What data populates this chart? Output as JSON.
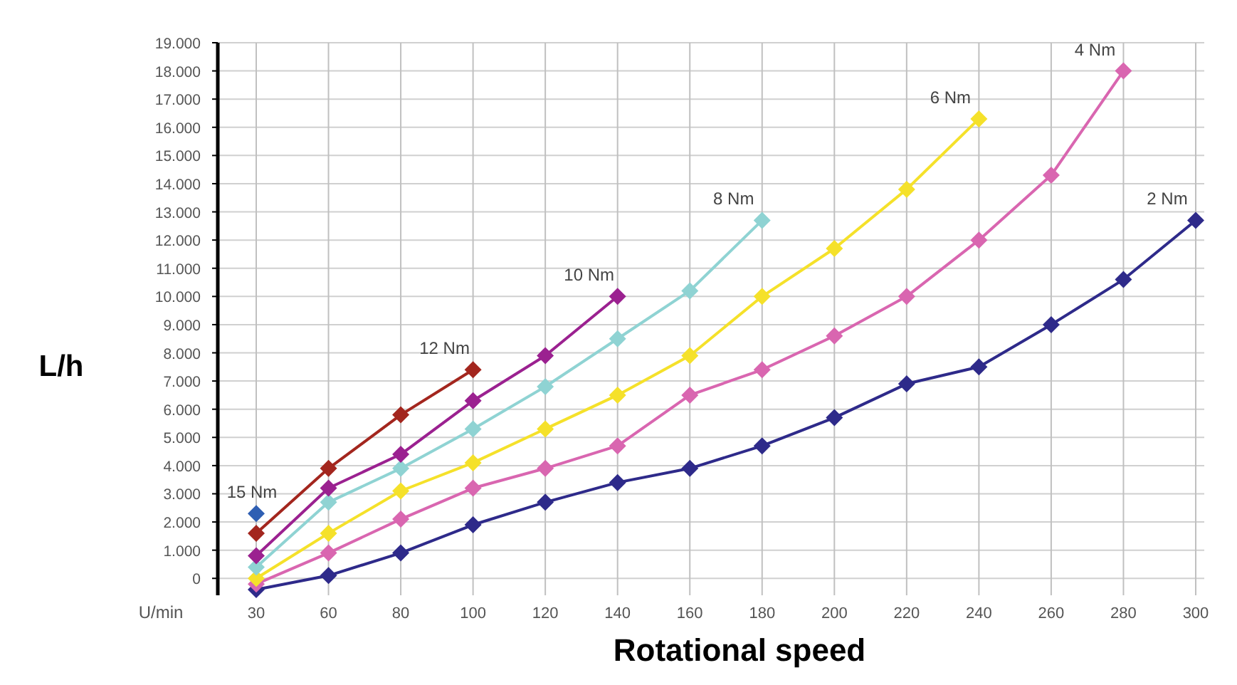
{
  "chart_data": {
    "type": "line",
    "xlabel": "Rotational speed",
    "ylabel": "L/h",
    "annotations": [
      "U/min"
    ],
    "categories": [
      "30",
      "60",
      "80",
      "100",
      "120",
      "140",
      "160",
      "180",
      "200",
      "220",
      "240",
      "260",
      "280",
      "300"
    ],
    "ylim": [
      -600,
      19000
    ],
    "yticks": [
      {
        "value": 0,
        "label": "0"
      },
      {
        "value": 1000,
        "label": "1.000"
      },
      {
        "value": 2000,
        "label": "2.000"
      },
      {
        "value": 3000,
        "label": "3.000"
      },
      {
        "value": 4000,
        "label": "4.000"
      },
      {
        "value": 5000,
        "label": "5.000"
      },
      {
        "value": 6000,
        "label": "6.000"
      },
      {
        "value": 7000,
        "label": "7.000"
      },
      {
        "value": 8000,
        "label": "8.000"
      },
      {
        "value": 9000,
        "label": "9.000"
      },
      {
        "value": 10000,
        "label": "10.000"
      },
      {
        "value": 11000,
        "label": "11.000"
      },
      {
        "value": 12000,
        "label": "12.000"
      },
      {
        "value": 13000,
        "label": "13.000"
      },
      {
        "value": 14000,
        "label": "14.000"
      },
      {
        "value": 15000,
        "label": "15.000"
      },
      {
        "value": 16000,
        "label": "16.000"
      },
      {
        "value": 17000,
        "label": "17.000"
      },
      {
        "value": 18000,
        "label": "18.000"
      },
      {
        "value": 19000,
        "label": "19.000"
      }
    ],
    "grid": true,
    "marker": "diamond",
    "line_style": "solid",
    "series": [
      {
        "name": "2 Nm",
        "color": "#2e2a8a",
        "values": [
          -400,
          100,
          900,
          1900,
          2700,
          3400,
          3900,
          4700,
          5700,
          6900,
          7500,
          9000,
          10600,
          12700
        ]
      },
      {
        "name": "4 Nm",
        "color": "#d966b0",
        "values": [
          -200,
          900,
          2100,
          3200,
          3900,
          4700,
          6500,
          7400,
          8600,
          10000,
          12000,
          14300,
          18000,
          null
        ]
      },
      {
        "name": "6 Nm",
        "color": "#f5e12a",
        "values": [
          0,
          1600,
          3100,
          4100,
          5300,
          6500,
          7900,
          10000,
          11700,
          13800,
          16300,
          null,
          null,
          null
        ]
      },
      {
        "name": "8 Nm",
        "color": "#8fd3d3",
        "values": [
          400,
          2700,
          3900,
          5300,
          6800,
          8500,
          10200,
          12700,
          null,
          null,
          null,
          null,
          null,
          null
        ]
      },
      {
        "name": "10 Nm",
        "color": "#9b2190",
        "values": [
          800,
          3200,
          4400,
          6300,
          7900,
          10000,
          null,
          null,
          null,
          null,
          null,
          null,
          null,
          null
        ]
      },
      {
        "name": "12 Nm",
        "color": "#a3261e",
        "values": [
          1600,
          3900,
          5800,
          7400,
          null,
          null,
          null,
          null,
          null,
          null,
          null,
          null,
          null,
          null
        ]
      },
      {
        "name": "15 Nm",
        "color": "#2f5fb3",
        "values": [
          2300,
          null,
          null,
          null,
          null,
          null,
          null,
          null,
          null,
          null,
          null,
          null,
          null,
          null
        ]
      }
    ]
  }
}
